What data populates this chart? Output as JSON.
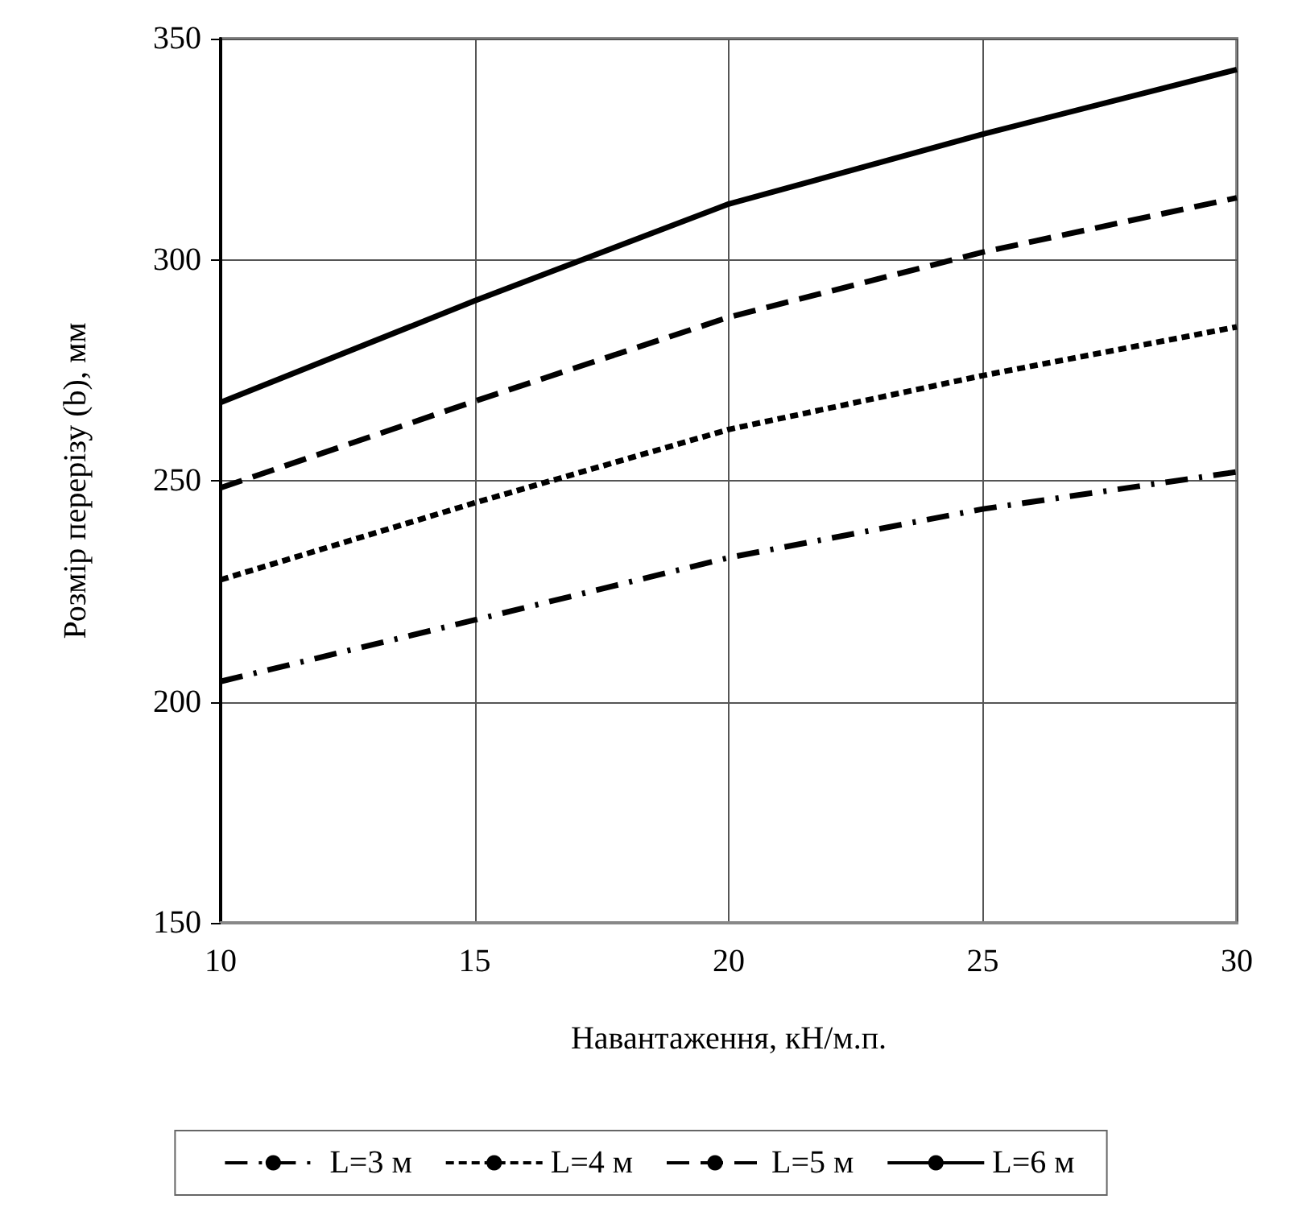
{
  "chart_data": {
    "type": "line",
    "xlabel": "Навантаження, кН/м.п.",
    "ylabel": "Розмір перерізу (b), мм",
    "x": [
      10,
      15,
      20,
      25,
      30
    ],
    "series": [
      {
        "name": "L=3 м",
        "color": "#000000",
        "line_style": "dashdot",
        "values": [
          204.6,
          218.5,
          232.6,
          243.6,
          252
        ]
      },
      {
        "name": "L=4 м",
        "color": "#000000",
        "line_style": "dotted",
        "values": [
          227.6,
          245,
          261.6,
          273.8,
          284.8
        ]
      },
      {
        "name": "L=5 м",
        "color": "#000000",
        "line_style": "dashed",
        "values": [
          248.4,
          268,
          287,
          301.7,
          314
        ]
      },
      {
        "name": "L=6 м",
        "color": "#000000",
        "line_style": "solid",
        "values": [
          267.7,
          290.7,
          312.6,
          328.4,
          343
        ]
      }
    ],
    "xlim": [
      10,
      30
    ],
    "xticks": [
      10,
      15,
      20,
      25,
      30
    ],
    "ylim": [
      150,
      350
    ],
    "yticks": [
      150,
      200,
      250,
      300,
      350
    ],
    "grid": true,
    "legend": "bottom",
    "marker": "none"
  }
}
